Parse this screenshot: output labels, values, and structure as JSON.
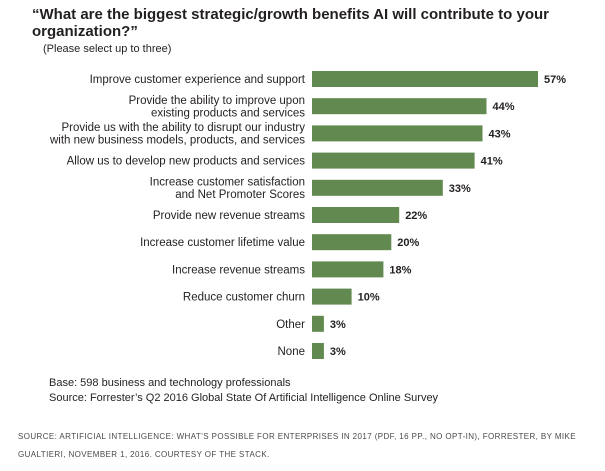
{
  "chart_data": {
    "type": "bar",
    "orientation": "horizontal",
    "title": "“What are the biggest strategic/growth benefits AI will contribute to your organization?”",
    "subtitle": "(Please select up to three)",
    "categories": [
      [
        "Improve customer experience and support"
      ],
      [
        "Provide the ability to improve upon",
        "existing products and services"
      ],
      [
        "Provide us with the ability to disrupt our industry",
        "with new business models, products, and services"
      ],
      [
        "Allow us to develop new products and services"
      ],
      [
        "Increase customer satisfaction",
        "and Net Promoter Scores"
      ],
      [
        "Provide new revenue streams"
      ],
      [
        "Increase customer lifetime value"
      ],
      [
        "Increase revenue streams"
      ],
      [
        "Reduce customer churn"
      ],
      [
        "Other"
      ],
      [
        "None"
      ]
    ],
    "values": [
      57,
      44,
      43,
      41,
      33,
      22,
      20,
      18,
      10,
      3,
      3
    ],
    "value_labels": [
      "57%",
      "44%",
      "43%",
      "41%",
      "33%",
      "22%",
      "20%",
      "18%",
      "10%",
      "3%",
      "3%"
    ],
    "unit": "%",
    "xlim": [
      0,
      57
    ],
    "bar_color": "#62894f",
    "grid": false,
    "legend": "none"
  },
  "notes": {
    "base": "Base: 598 business and technology professionals",
    "source": "Source: Forrester’s Q2 2016 Global State Of Artificial Intelligence Online Survey"
  },
  "credit": "SOURCE: ARTIFICIAL INTELLIGENCE: WHAT’S POSSIBLE FOR ENTERPRISES IN 2017 (PDF, 16 PP., NO OPT-IN), FORRESTER, BY MIKE GUALTIERI, NOVEMBER 1, 2016. COURTESY OF THE STACK."
}
